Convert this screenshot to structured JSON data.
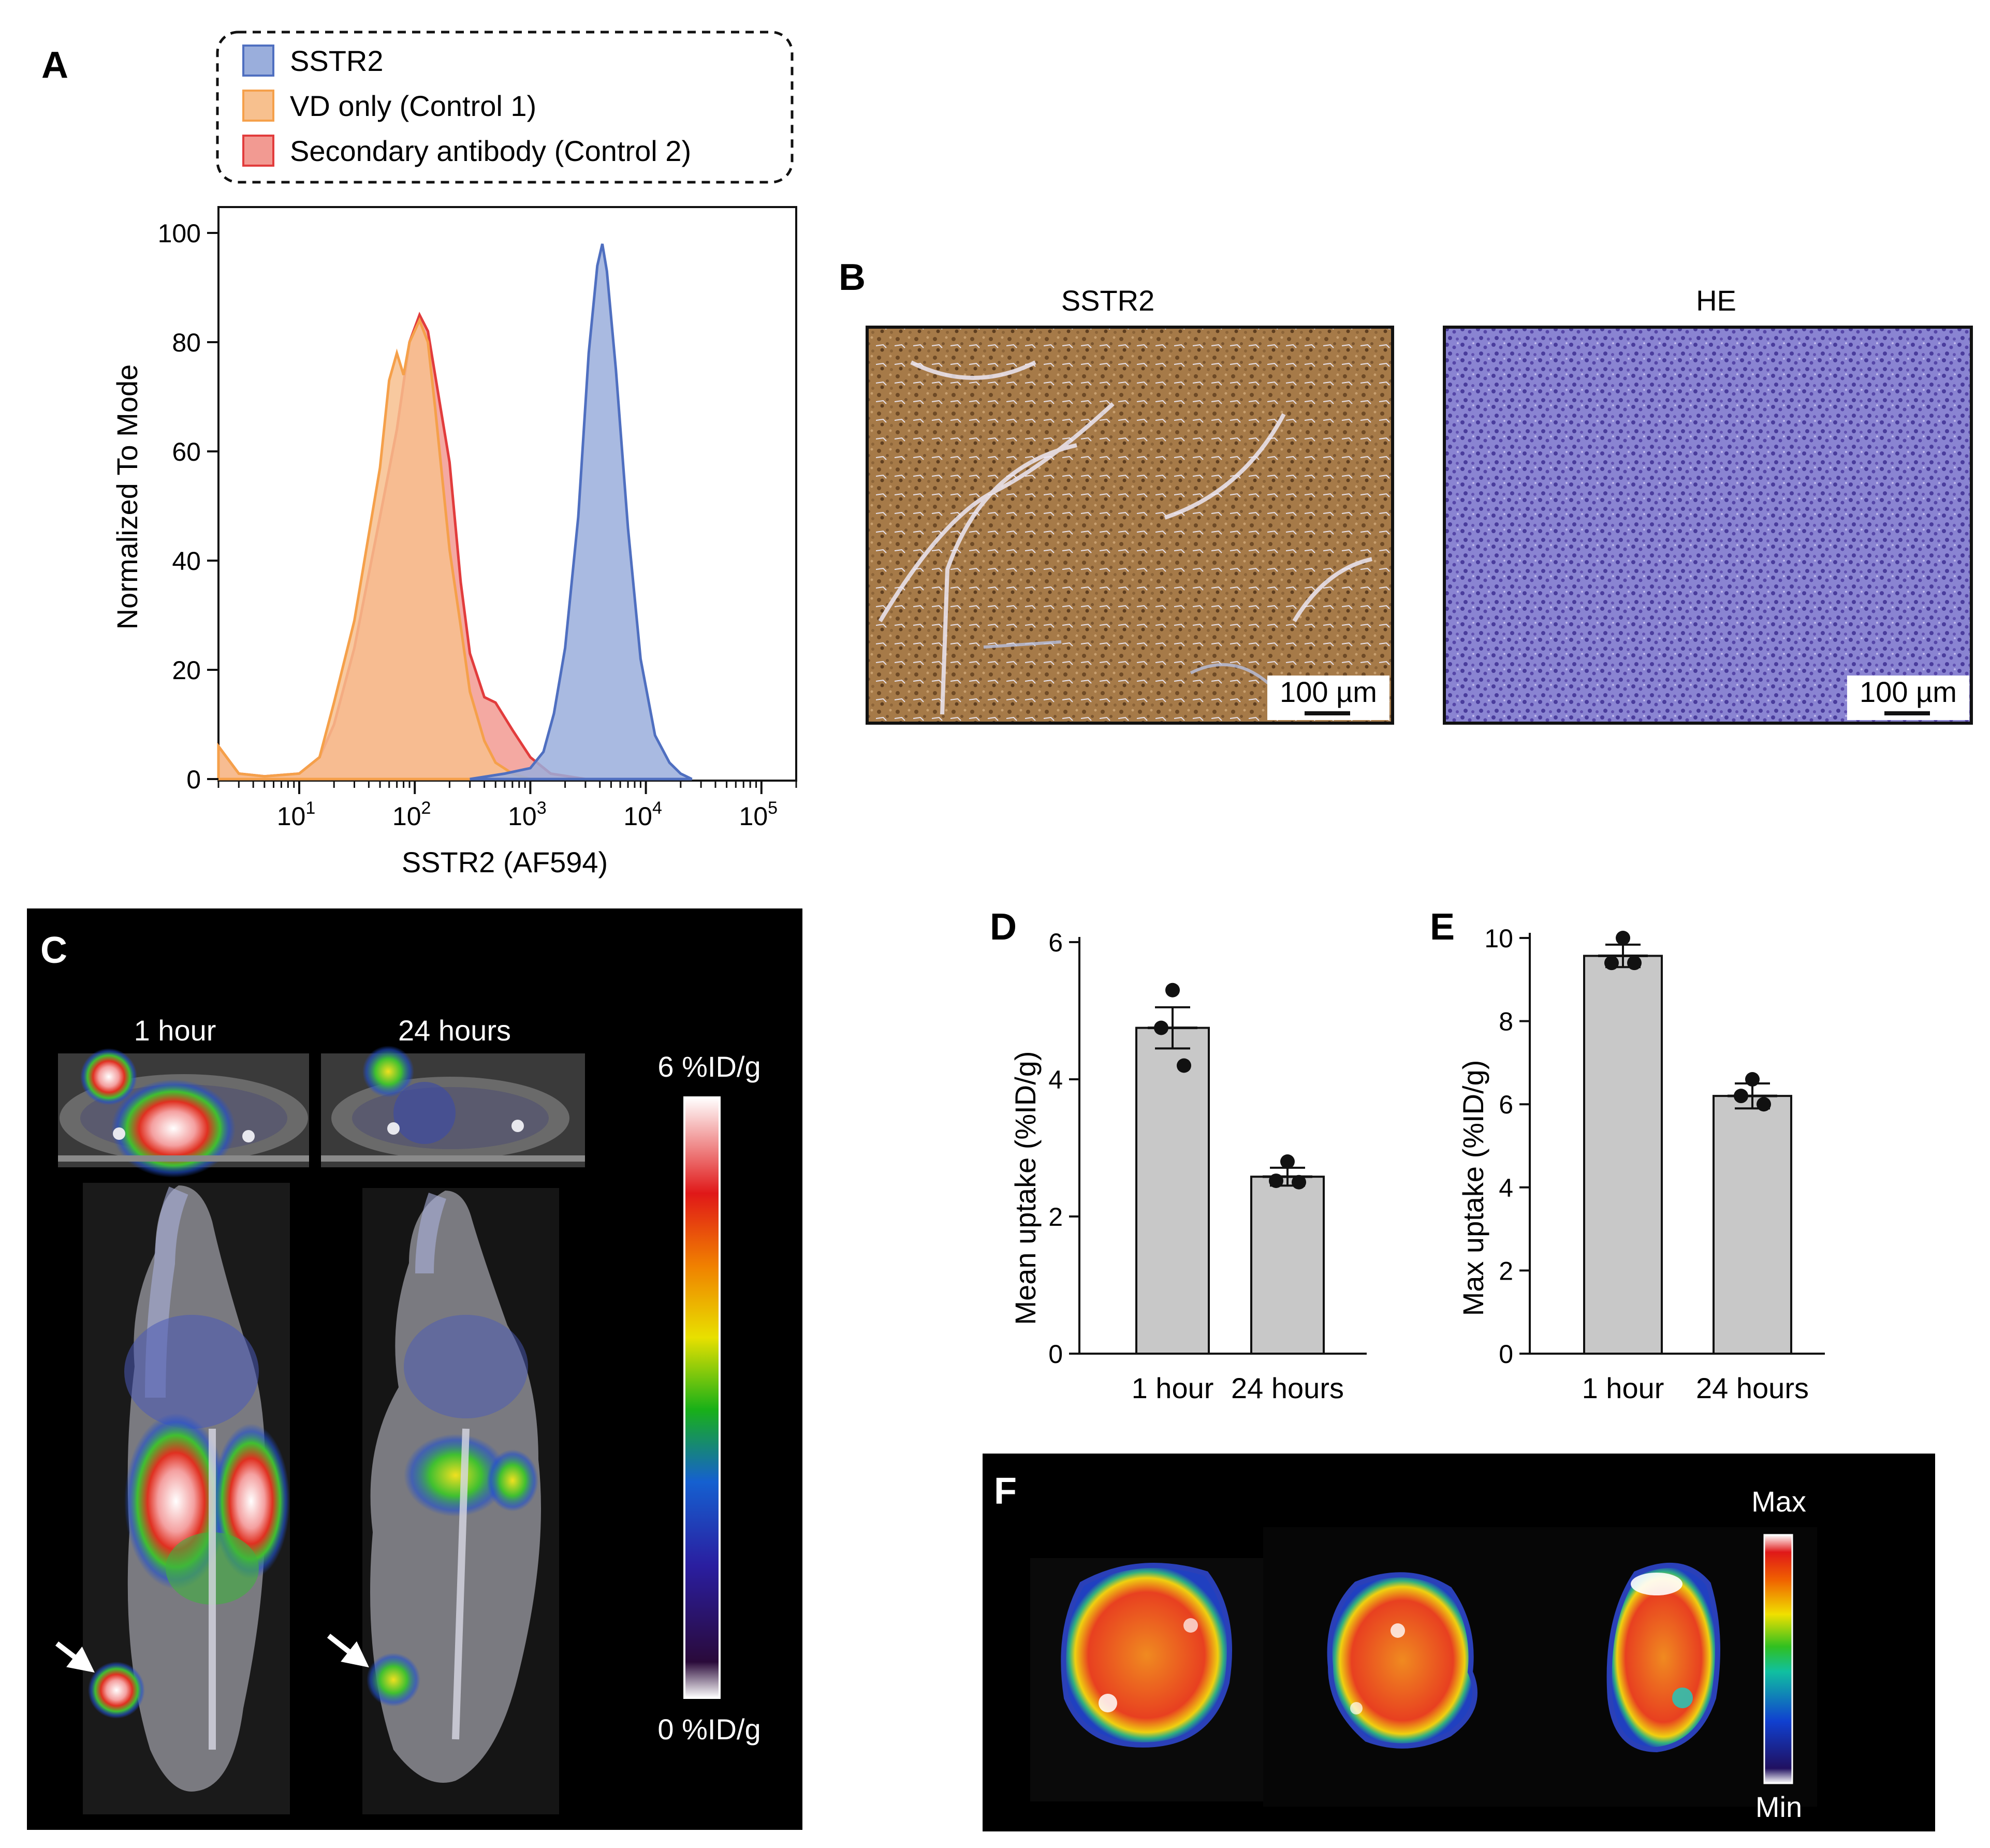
{
  "panels": {
    "A": "A",
    "B": "B",
    "C": "C",
    "D": "D",
    "E": "E",
    "F": "F"
  },
  "colors": {
    "sstr2": "#4f6fc0",
    "sstr2_fill": "#9aaedc",
    "control1": "#f5a04a",
    "control1_fill": "#f7c08e",
    "control2": "#e23c3c",
    "control2_fill": "#f29a92",
    "bar_fill": "#c8c8c8",
    "dark_bg": "#000000",
    "ihc_brown": "#a8804e",
    "he_purple": "#7c74c8"
  },
  "chart_data": [
    {
      "id": "A",
      "type": "area",
      "title": "",
      "xlabel": "SSTR2 (AF594)",
      "ylabel": "Normalized To Mode",
      "x_scale": "log",
      "xlim": [
        2,
        200000
      ],
      "ylim": [
        0,
        100
      ],
      "xtick_labels": [
        {
          "base": "10",
          "exp": "1",
          "value": 10
        },
        {
          "base": "10",
          "exp": "2",
          "value": 100
        },
        {
          "base": "10",
          "exp": "3",
          "value": 1000
        },
        {
          "base": "10",
          "exp": "4",
          "value": 10000
        },
        {
          "base": "10",
          "exp": "5",
          "value": 100000
        }
      ],
      "yticks": [
        "0",
        "20",
        "40",
        "60",
        "80",
        "100"
      ],
      "legend": [
        "SSTR2",
        "VD only (Control 1)",
        "Secondary antibody (Control 2)"
      ],
      "legend_position": "top",
      "series": [
        {
          "name": "Secondary antibody (Control 2)",
          "points": [
            [
              2,
              6
            ],
            [
              3,
              1
            ],
            [
              5,
              0.5
            ],
            [
              10,
              1
            ],
            [
              15,
              4
            ],
            [
              20,
              10
            ],
            [
              30,
              24
            ],
            [
              50,
              48
            ],
            [
              70,
              64
            ],
            [
              90,
              80
            ],
            [
              110,
              85
            ],
            [
              130,
              82
            ],
            [
              150,
              74
            ],
            [
              200,
              58
            ],
            [
              250,
              36
            ],
            [
              300,
              23
            ],
            [
              400,
              15
            ],
            [
              500,
              14
            ],
            [
              700,
              9
            ],
            [
              1000,
              4
            ],
            [
              1500,
              1
            ],
            [
              3000,
              0
            ]
          ]
        },
        {
          "name": "VD only (Control 1)",
          "points": [
            [
              2,
              6
            ],
            [
              3,
              1
            ],
            [
              5,
              0.5
            ],
            [
              10,
              1
            ],
            [
              15,
              4
            ],
            [
              20,
              14
            ],
            [
              30,
              29
            ],
            [
              50,
              57
            ],
            [
              60,
              73
            ],
            [
              70,
              78
            ],
            [
              80,
              74
            ],
            [
              90,
              80
            ],
            [
              110,
              84
            ],
            [
              130,
              80
            ],
            [
              150,
              68
            ],
            [
              200,
              42
            ],
            [
              250,
              28
            ],
            [
              300,
              16
            ],
            [
              400,
              7
            ],
            [
              500,
              3
            ],
            [
              700,
              1
            ],
            [
              1000,
              0
            ]
          ]
        },
        {
          "name": "SSTR2",
          "points": [
            [
              300,
              0
            ],
            [
              600,
              1
            ],
            [
              1000,
              2
            ],
            [
              1300,
              5
            ],
            [
              1600,
              12
            ],
            [
              2000,
              24
            ],
            [
              2600,
              48
            ],
            [
              3200,
              78
            ],
            [
              3800,
              94
            ],
            [
              4200,
              98
            ],
            [
              4600,
              93
            ],
            [
              5500,
              75
            ],
            [
              7000,
              46
            ],
            [
              9000,
              22
            ],
            [
              12000,
              8
            ],
            [
              16000,
              3
            ],
            [
              20000,
              1
            ],
            [
              25000,
              0
            ]
          ]
        }
      ]
    },
    {
      "id": "D",
      "type": "bar",
      "title": "",
      "xlabel": "",
      "ylabel": "Mean uptake (%ID/g)",
      "categories": [
        "1 hour",
        "24 hours"
      ],
      "values": [
        4.75,
        2.58
      ],
      "errors": [
        0.3,
        0.13
      ],
      "points": [
        [
          5.3,
          4.75,
          4.2
        ],
        [
          2.8,
          2.52,
          2.5
        ]
      ],
      "ylim": [
        0,
        6
      ],
      "yticks": [
        "0",
        "2",
        "4",
        "6"
      ]
    },
    {
      "id": "E",
      "type": "bar",
      "title": "",
      "xlabel": "",
      "ylabel": "Max uptake (%ID/g)",
      "categories": [
        "1 hour",
        "24 hours"
      ],
      "values": [
        9.57,
        6.2
      ],
      "errors": [
        0.27,
        0.3
      ],
      "points": [
        [
          10.0,
          9.4,
          9.4
        ],
        [
          6.6,
          6.2,
          6.0
        ]
      ],
      "ylim": [
        0,
        10
      ],
      "yticks": [
        "0",
        "2",
        "4",
        "6",
        "8",
        "10"
      ]
    }
  ],
  "panelB": {
    "left_title": "SSTR2",
    "right_title": "HE",
    "scale_label": "100 µm"
  },
  "panelC": {
    "time1": "1 hour",
    "time2": "24 hours",
    "scale_max": "6 %ID/g",
    "scale_min": "0 %ID/g"
  },
  "panelF": {
    "max_label": "Max",
    "min_label": "Min"
  }
}
